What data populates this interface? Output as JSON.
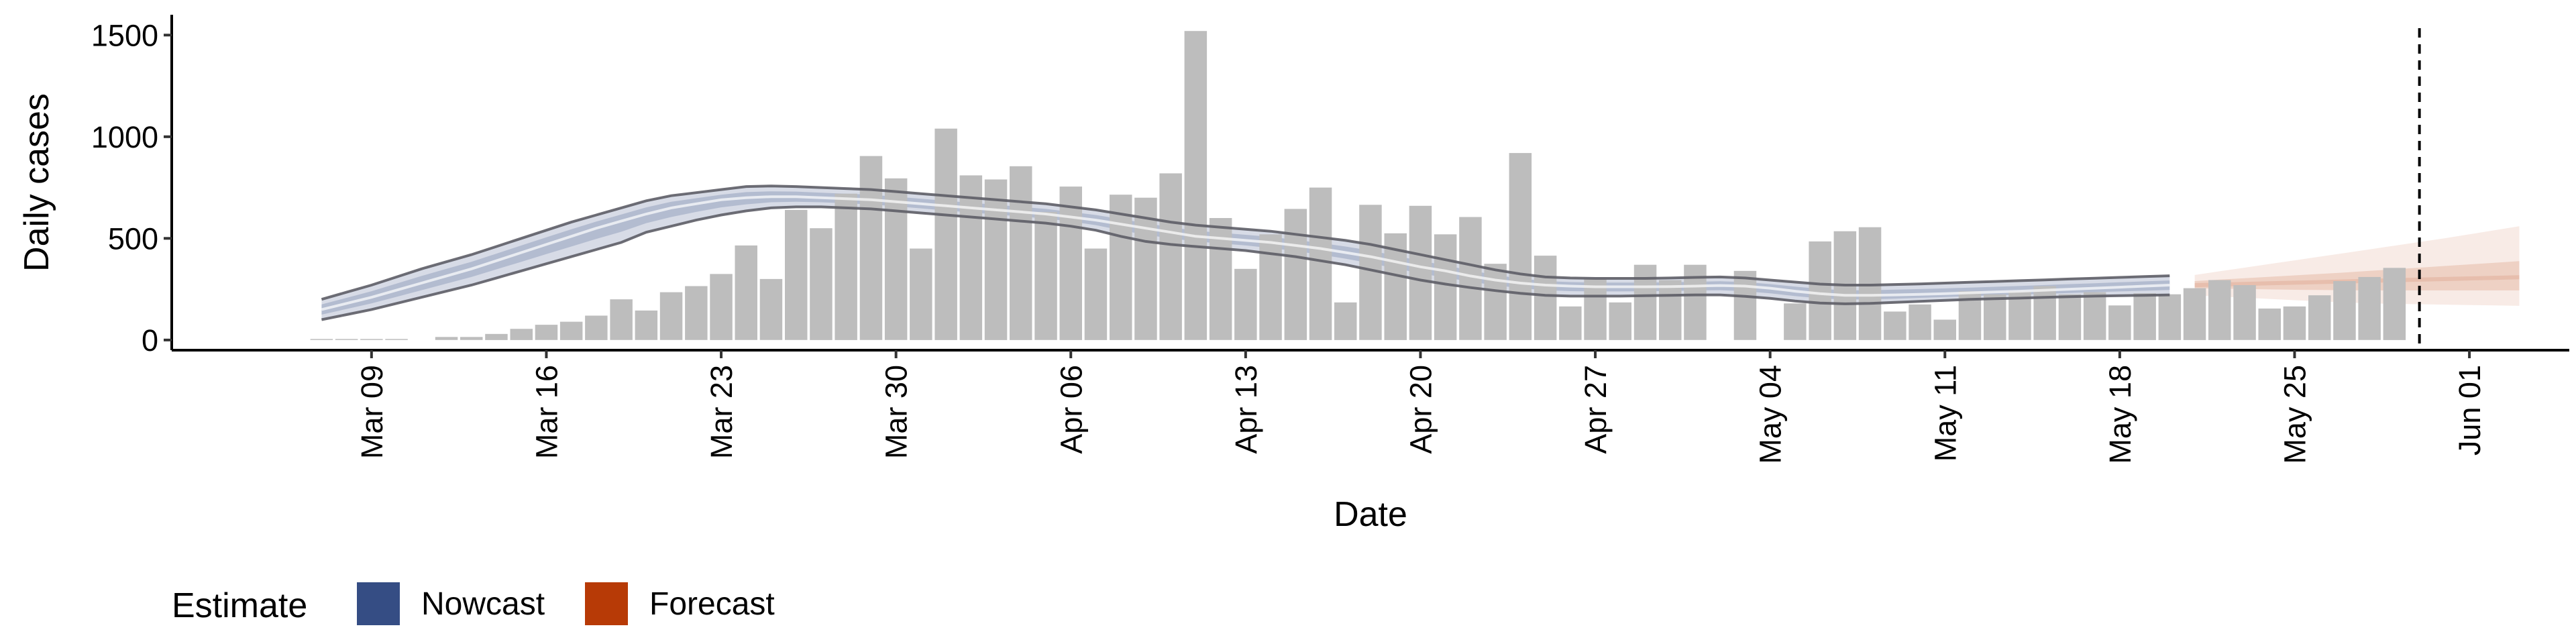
{
  "chart_data": {
    "type": "bar",
    "xlabel": "Date",
    "ylabel": "Daily cases",
    "ylim": [
      -50,
      1600
    ],
    "yticks": [
      0,
      500,
      1000,
      1500
    ],
    "ytick_labels": [
      "0",
      "500",
      "1000",
      "1500"
    ],
    "xlim": [
      "2020-03-01",
      "2020-06-05"
    ],
    "xticks": [
      "2020-03-09",
      "2020-03-16",
      "2020-03-23",
      "2020-03-30",
      "2020-04-06",
      "2020-04-13",
      "2020-04-20",
      "2020-04-27",
      "2020-05-04",
      "2020-05-11",
      "2020-05-18",
      "2020-05-25",
      "2020-06-01"
    ],
    "xtick_labels": [
      "Mar 09",
      "Mar 16",
      "Mar 23",
      "Mar 30",
      "Apr 06",
      "Apr 13",
      "Apr 20",
      "Apr 27",
      "May 04",
      "May 11",
      "May 18",
      "May 25",
      "Jun 01"
    ],
    "bars": {
      "start_date": "2020-03-07",
      "color": "#bdbdbd",
      "values": [
        5,
        5,
        5,
        5,
        0,
        15,
        15,
        30,
        55,
        75,
        90,
        120,
        200,
        145,
        235,
        265,
        325,
        465,
        300,
        640,
        550,
        720,
        905,
        795,
        450,
        1040,
        810,
        790,
        855,
        630,
        755,
        450,
        715,
        700,
        820,
        1520,
        600,
        350,
        520,
        645,
        750,
        185,
        665,
        525,
        660,
        520,
        605,
        375,
        920,
        415,
        165,
        300,
        185,
        370,
        295,
        370,
        0,
        340,
        0,
        180,
        485,
        535,
        555,
        140,
        175,
        100,
        240,
        225,
        240,
        265,
        225,
        235,
        170,
        230,
        225,
        255,
        295,
        270,
        155,
        165,
        220,
        290,
        310,
        355
      ]
    },
    "nowcast": {
      "name": "Nowcast",
      "color": "#354d84",
      "start_date": "2020-03-07",
      "median": [
        150,
        180,
        210,
        245,
        280,
        315,
        350,
        390,
        430,
        470,
        510,
        550,
        585,
        620,
        650,
        670,
        690,
        700,
        705,
        705,
        700,
        695,
        690,
        680,
        670,
        660,
        650,
        640,
        630,
        620,
        605,
        590,
        570,
        550,
        530,
        510,
        500,
        490,
        480,
        465,
        450,
        430,
        410,
        385,
        360,
        340,
        315,
        295,
        280,
        270,
        265,
        262,
        262,
        262,
        263,
        265,
        268,
        265,
        255,
        240,
        228,
        220,
        220,
        222,
        225,
        228,
        232,
        236,
        240,
        245,
        250,
        255,
        260,
        265,
        270
      ],
      "lower90": [
        100,
        125,
        150,
        180,
        210,
        240,
        270,
        305,
        340,
        375,
        410,
        445,
        480,
        530,
        560,
        590,
        615,
        635,
        650,
        655,
        655,
        650,
        645,
        635,
        625,
        615,
        605,
        595,
        585,
        575,
        560,
        540,
        510,
        485,
        470,
        460,
        450,
        440,
        425,
        410,
        390,
        370,
        345,
        320,
        295,
        275,
        258,
        243,
        230,
        220,
        216,
        216,
        216,
        218,
        220,
        222,
        222,
        215,
        205,
        192,
        182,
        178,
        180,
        185,
        190,
        195,
        200,
        203,
        206,
        210,
        213,
        216,
        218,
        220,
        222
      ],
      "upper90": [
        200,
        235,
        270,
        310,
        350,
        385,
        420,
        460,
        500,
        540,
        580,
        615,
        650,
        685,
        710,
        725,
        740,
        755,
        758,
        755,
        750,
        745,
        740,
        730,
        720,
        710,
        700,
        690,
        680,
        670,
        655,
        640,
        620,
        600,
        580,
        565,
        555,
        545,
        535,
        520,
        505,
        490,
        470,
        445,
        420,
        395,
        370,
        345,
        325,
        310,
        305,
        303,
        303,
        303,
        305,
        308,
        310,
        305,
        295,
        285,
        275,
        270,
        270,
        273,
        276,
        280,
        284,
        288,
        292,
        296,
        300,
        304,
        308,
        312,
        316
      ]
    },
    "forecast": {
      "name": "Forecast",
      "color": "#b73a06",
      "start_date": "2020-05-21",
      "median": [
        270,
        273,
        276,
        279,
        282,
        285,
        288,
        291,
        294,
        297,
        300,
        303,
        306,
        309
      ],
      "lower50": [
        255,
        253,
        251,
        249,
        247,
        246,
        245,
        244,
        244,
        244,
        244,
        244,
        244,
        244
      ],
      "upper50": [
        290,
        297,
        304,
        311,
        318,
        325,
        332,
        340,
        348,
        356,
        364,
        372,
        380,
        388
      ],
      "lower90": [
        220,
        214,
        208,
        202,
        196,
        190,
        185,
        180,
        178,
        176,
        174,
        172,
        170,
        168
      ],
      "upper90": [
        320,
        338,
        356,
        374,
        392,
        410,
        428,
        446,
        464,
        482,
        500,
        520,
        540,
        560
      ]
    },
    "vline": {
      "date": "2020-05-30",
      "style": "dashed"
    },
    "legend": {
      "title": "Estimate",
      "placement": "bottom-left",
      "items": [
        {
          "label": "Nowcast",
          "color": "#354d84"
        },
        {
          "label": "Forecast",
          "color": "#b73a06"
        }
      ]
    },
    "grid": false
  }
}
